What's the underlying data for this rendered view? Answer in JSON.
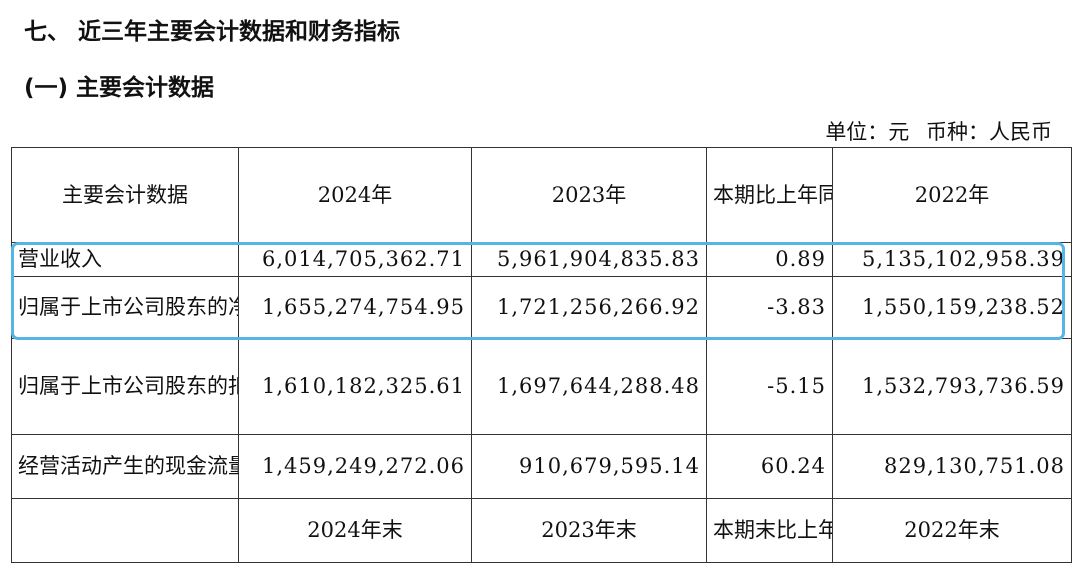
{
  "section_title": "七、 近三年主要会计数据和财务指标",
  "subsection_title": "(一) 主要会计数据",
  "unit_note": "单位：元 币种：人民币",
  "highlight_color": "#55b6e6",
  "table": {
    "header": [
      "主要会计数据",
      "2024年",
      "2023年",
      "本期比上年同期增减(%)",
      "2022年"
    ],
    "rows": [
      [
        "营业收入",
        "6,014,705,362.71",
        "5,961,904,835.83",
        "0.89",
        "5,135,102,958.39"
      ],
      [
        "归属于上市公司股东的净利润",
        "1,655,274,754.95",
        "1,721,256,266.92",
        "-3.83",
        "1,550,159,238.52"
      ],
      [
        "归属于上市公司股东的扣除非经常性损益的净利润",
        "1,610,182,325.61",
        "1,697,644,288.48",
        "-5.15",
        "1,532,793,736.59"
      ],
      [
        "经营活动产生的现金流量净额",
        "1,459,249,272.06",
        "910,679,595.14",
        "60.24",
        "829,130,751.08"
      ]
    ],
    "footer_header": [
      "",
      "2024年末",
      "2023年末",
      "本期末比上年同期",
      "2022年末"
    ]
  }
}
